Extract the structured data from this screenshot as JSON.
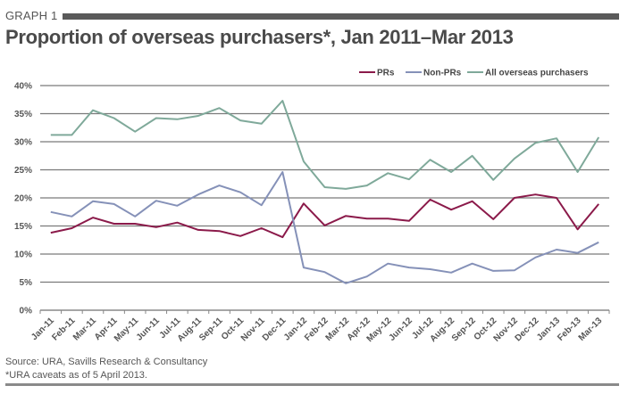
{
  "header": {
    "graph_label": "GRAPH 1",
    "title": "Proportion of overseas purchasers*, Jan 2011–Mar 2013"
  },
  "footer": {
    "source": "Source: URA, Savills Research & Consultancy",
    "note": "*URA caveats as of 5 April 2013."
  },
  "chart_data": {
    "type": "line",
    "title": "Proportion of overseas purchasers*, Jan 2011–Mar 2013",
    "xlabel": "",
    "ylabel": "",
    "ylim": [
      0,
      40
    ],
    "yticks": [
      0,
      5,
      10,
      15,
      20,
      25,
      30,
      35,
      40
    ],
    "ytick_labels": [
      "0%",
      "5%",
      "10%",
      "15%",
      "20%",
      "25%",
      "30%",
      "35%",
      "40%"
    ],
    "grid": true,
    "legend_position": "top-right",
    "categories": [
      "Jan-11",
      "Feb-11",
      "Mar-11",
      "Apr-11",
      "May-11",
      "Jun-11",
      "Jul-11",
      "Aug-11",
      "Sep-11",
      "Oct-11",
      "Nov-11",
      "Dec-11",
      "Jan-12",
      "Feb-12",
      "Mar-12",
      "Apr-12",
      "May-12",
      "Jun-12",
      "Jul-12",
      "Aug-12",
      "Sep-12",
      "Oct-12",
      "Nov-12",
      "Dec-12",
      "Jan-13",
      "Feb-13",
      "Mar-13"
    ],
    "series": [
      {
        "name": "PRs",
        "color": "#8b1a4a",
        "values": [
          13.8,
          14.6,
          16.5,
          15.4,
          15.4,
          14.8,
          15.6,
          14.3,
          14.1,
          13.2,
          14.6,
          13.0,
          19.0,
          15.1,
          16.8,
          16.3,
          16.3,
          15.9,
          19.7,
          17.9,
          19.4,
          16.2,
          20.0,
          20.6,
          20.0,
          14.4,
          18.9
        ]
      },
      {
        "name": "Non-PRs",
        "color": "#8591b8",
        "values": [
          17.5,
          16.7,
          19.4,
          18.9,
          16.7,
          19.5,
          18.6,
          20.6,
          22.2,
          21.0,
          18.7,
          24.6,
          7.6,
          6.8,
          4.8,
          6.0,
          8.3,
          7.6,
          7.3,
          6.7,
          8.3,
          7.0,
          7.1,
          9.4,
          10.8,
          10.2,
          12.1
        ]
      },
      {
        "name": "All overseas  purchasers",
        "color": "#7fa99a",
        "values": [
          31.2,
          31.2,
          35.6,
          34.2,
          31.8,
          34.2,
          34.0,
          34.6,
          36.0,
          33.8,
          33.2,
          37.3,
          26.5,
          21.9,
          21.6,
          22.2,
          24.4,
          23.3,
          26.8,
          24.6,
          27.5,
          23.2,
          27.0,
          29.8,
          30.6,
          24.6,
          30.8
        ]
      }
    ]
  }
}
